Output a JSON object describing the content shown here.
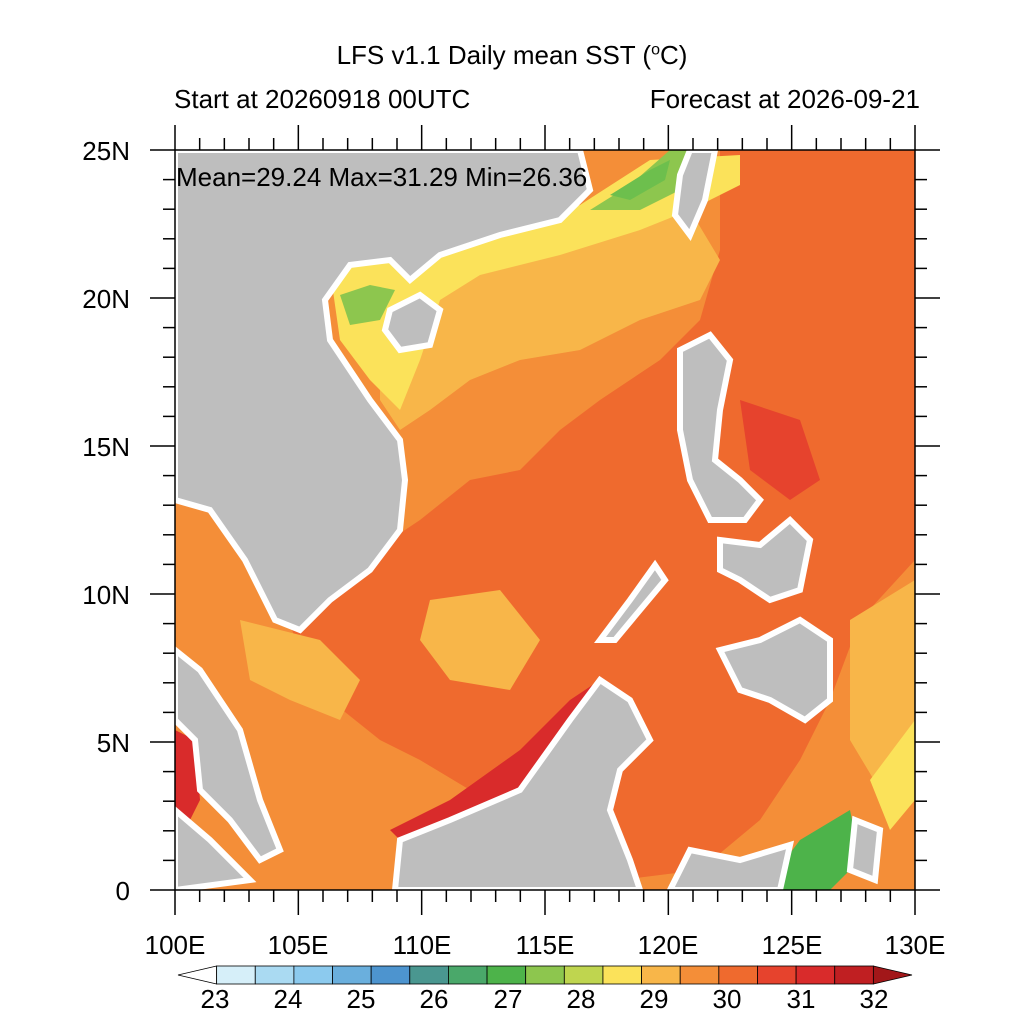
{
  "header": {
    "title": "LFS v1.1 Daily mean SST (",
    "title_unit_o": "o",
    "title_unit_c": "C)",
    "start_label": "Start at 20260918 00UTC",
    "forecast_label": "Forecast at 2026-09-21"
  },
  "stats": {
    "text": "Mean=29.24  Max=31.29  Min=26.36"
  },
  "map": {
    "lat_labels": [
      "25N",
      "20N",
      "15N",
      "10N",
      "5N",
      "0"
    ],
    "lon_labels": [
      "100E",
      "105E",
      "110E",
      "115E",
      "120E",
      "125E",
      "130E"
    ],
    "lat_range": [
      0,
      25
    ],
    "lon_range": [
      100,
      130
    ],
    "land_color": "#bebebe"
  },
  "colorbar": {
    "labels": [
      "23",
      "24",
      "25",
      "26",
      "27",
      "28",
      "29",
      "30",
      "31",
      "32"
    ],
    "colors": [
      "#ffffff",
      "#d6eff9",
      "#aadaf2",
      "#8ccaee",
      "#6aafdd",
      "#4d94cf",
      "#4a9790",
      "#4aa86a",
      "#4db34a",
      "#8dc64e",
      "#bfd54f",
      "#fbe25a",
      "#f8b649",
      "#f48e38",
      "#ef6a2e",
      "#e6432d",
      "#d92b2b",
      "#c01f22",
      "#a21719"
    ]
  }
}
